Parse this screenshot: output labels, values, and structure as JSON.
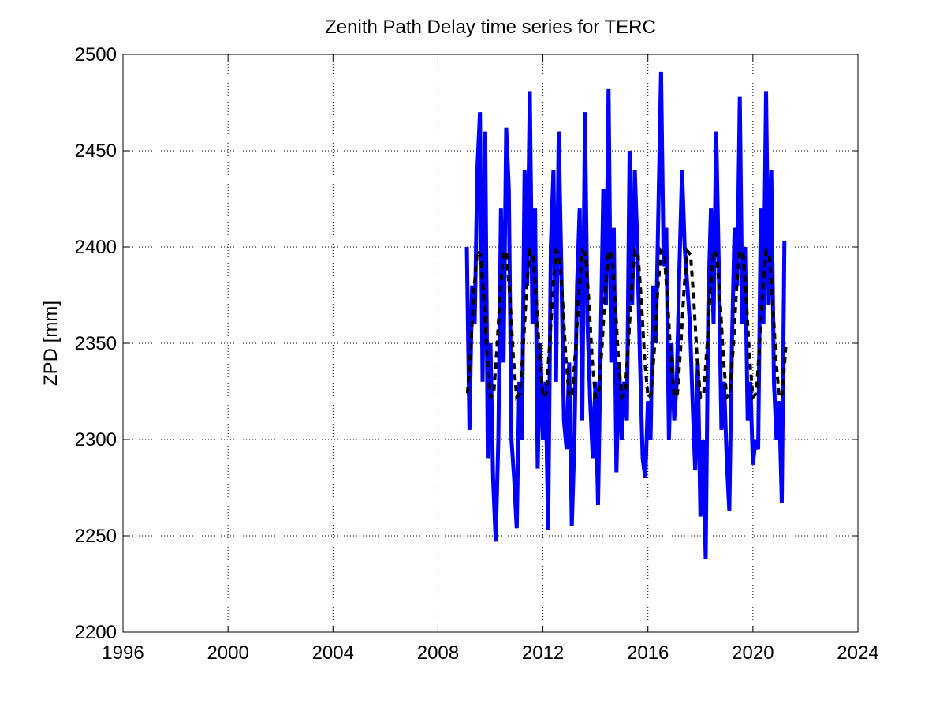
{
  "chart_data": {
    "type": "line",
    "title": "Zenith Path Delay time series for TERC",
    "ylabel": "ZPD [mm]",
    "xlim": [
      1996,
      2024
    ],
    "xticks": [
      1996,
      2000,
      2004,
      2008,
      2012,
      2016,
      2020,
      2024
    ],
    "ylim": [
      2200,
      2500
    ],
    "yticks": [
      2200,
      2250,
      2300,
      2350,
      2400,
      2450,
      2500
    ],
    "grid": true,
    "series": [
      {
        "color": "#0000ff",
        "dashed": false,
        "x": [
          2009.1,
          2009.2,
          2009.3,
          2009.4,
          2009.5,
          2009.6,
          2009.7,
          2009.8,
          2009.9,
          2010.0,
          2010.1,
          2010.2,
          2010.3,
          2010.4,
          2010.5,
          2010.6,
          2010.7,
          2010.8,
          2010.9,
          2011.0,
          2011.1,
          2011.2,
          2011.3,
          2011.4,
          2011.5,
          2011.6,
          2011.7,
          2011.8,
          2011.9,
          2012.0,
          2012.1,
          2012.2,
          2012.3,
          2012.4,
          2012.5,
          2012.6,
          2012.7,
          2012.8,
          2012.9,
          2013.0,
          2013.1,
          2013.2,
          2013.3,
          2013.4,
          2013.5,
          2013.6,
          2013.7,
          2013.8,
          2013.9,
          2014.0,
          2014.1,
          2014.2,
          2014.3,
          2014.4,
          2014.5,
          2014.6,
          2014.7,
          2014.8,
          2014.9,
          2015.0,
          2015.1,
          2015.2,
          2015.3,
          2015.4,
          2015.5,
          2015.6,
          2015.7,
          2015.8,
          2015.9,
          2016.0,
          2016.1,
          2016.2,
          2016.3,
          2016.4,
          2016.5,
          2016.6,
          2016.7,
          2016.8,
          2016.9,
          2017.0,
          2017.1,
          2017.2,
          2017.3,
          2017.4,
          2017.5,
          2017.6,
          2017.7,
          2017.8,
          2017.9,
          2018.0,
          2018.1,
          2018.2,
          2018.3,
          2018.4,
          2018.5,
          2018.6,
          2018.7,
          2018.8,
          2018.9,
          2019.0,
          2019.1,
          2019.2,
          2019.3,
          2019.4,
          2019.5,
          2019.6,
          2019.7,
          2019.8,
          2019.9,
          2020.0,
          2020.1,
          2020.2,
          2020.3,
          2020.4,
          2020.5,
          2020.6,
          2020.7,
          2020.8,
          2020.9,
          2021.0,
          2021.1,
          2021.2
        ],
        "values": [
          2400,
          2305,
          2380,
          2360,
          2440,
          2470,
          2330,
          2460,
          2290,
          2350,
          2280,
          2247,
          2300,
          2420,
          2340,
          2462,
          2430,
          2300,
          2280,
          2254,
          2330,
          2300,
          2440,
          2380,
          2481,
          2360,
          2420,
          2285,
          2350,
          2300,
          2330,
          2253,
          2400,
          2440,
          2330,
          2460,
          2390,
          2310,
          2295,
          2340,
          2255,
          2300,
          2380,
          2420,
          2310,
          2470,
          2360,
          2320,
          2290,
          2330,
          2266,
          2350,
          2430,
          2370,
          2482,
          2340,
          2410,
          2283,
          2340,
          2300,
          2330,
          2310,
          2450,
          2370,
          2440,
          2400,
          2340,
          2290,
          2280,
          2320,
          2300,
          2380,
          2350,
          2420,
          2491,
          2390,
          2410,
          2300,
          2350,
          2310,
          2330,
          2390,
          2440,
          2400,
          2380,
          2360,
          2320,
          2284,
          2340,
          2260,
          2300,
          2238,
          2370,
          2420,
          2360,
          2460,
          2390,
          2305,
          2330,
          2290,
          2263,
          2350,
          2410,
          2380,
          2478,
          2360,
          2400,
          2310,
          2330,
          2287,
          2300,
          2295,
          2420,
          2360,
          2481,
          2370,
          2440,
          2330,
          2300,
          2320,
          2267,
          2403
        ]
      },
      {
        "color": "#000000",
        "dashed": true,
        "x": [
          2009.125,
          2009.25,
          2009.375,
          2009.5,
          2009.625,
          2009.75,
          2009.875,
          2010,
          2010.125,
          2010.25,
          2010.375,
          2010.5,
          2010.625,
          2010.75,
          2010.875,
          2011,
          2011.125,
          2011.25,
          2011.375,
          2011.5,
          2011.625,
          2011.75,
          2011.875,
          2012,
          2012.125,
          2012.25,
          2012.375,
          2012.5,
          2012.625,
          2012.75,
          2012.875,
          2013,
          2013.125,
          2013.25,
          2013.375,
          2013.5,
          2013.625,
          2013.75,
          2013.875,
          2014,
          2014.125,
          2014.25,
          2014.375,
          2014.5,
          2014.625,
          2014.75,
          2014.875,
          2015,
          2015.125,
          2015.25,
          2015.375,
          2015.5,
          2015.625,
          2015.75,
          2015.875,
          2016,
          2016.125,
          2016.25,
          2016.375,
          2016.5,
          2016.625,
          2016.75,
          2016.875,
          2017,
          2017.125,
          2017.25,
          2017.375,
          2017.5,
          2017.625,
          2017.75,
          2017.875,
          2018,
          2018.125,
          2018.25,
          2018.375,
          2018.5,
          2018.625,
          2018.75,
          2018.875,
          2019,
          2019.125,
          2019.25,
          2019.375,
          2019.5,
          2019.625,
          2019.75,
          2019.875,
          2020,
          2020.125,
          2020.25,
          2020.375,
          2020.5,
          2020.625,
          2020.75,
          2020.875,
          2021,
          2021.125,
          2021.25
        ],
        "values": [
          2324,
          2348,
          2378,
          2398,
          2396,
          2372,
          2342,
          2322,
          2324,
          2348,
          2378,
          2398,
          2396,
          2372,
          2342,
          2322,
          2324,
          2348,
          2378,
          2398,
          2396,
          2372,
          2342,
          2322,
          2324,
          2348,
          2378,
          2398,
          2396,
          2372,
          2342,
          2322,
          2324,
          2348,
          2378,
          2398,
          2396,
          2372,
          2342,
          2322,
          2324,
          2348,
          2378,
          2398,
          2396,
          2372,
          2342,
          2322,
          2324,
          2348,
          2378,
          2398,
          2396,
          2372,
          2342,
          2322,
          2324,
          2348,
          2378,
          2398,
          2396,
          2372,
          2342,
          2322,
          2324,
          2348,
          2378,
          2398,
          2396,
          2372,
          2342,
          2322,
          2324,
          2348,
          2378,
          2398,
          2396,
          2372,
          2342,
          2322,
          2324,
          2348,
          2378,
          2398,
          2396,
          2372,
          2342,
          2322,
          2324,
          2348,
          2378,
          2398,
          2396,
          2372,
          2342,
          2322,
          2324,
          2348
        ]
      }
    ]
  }
}
